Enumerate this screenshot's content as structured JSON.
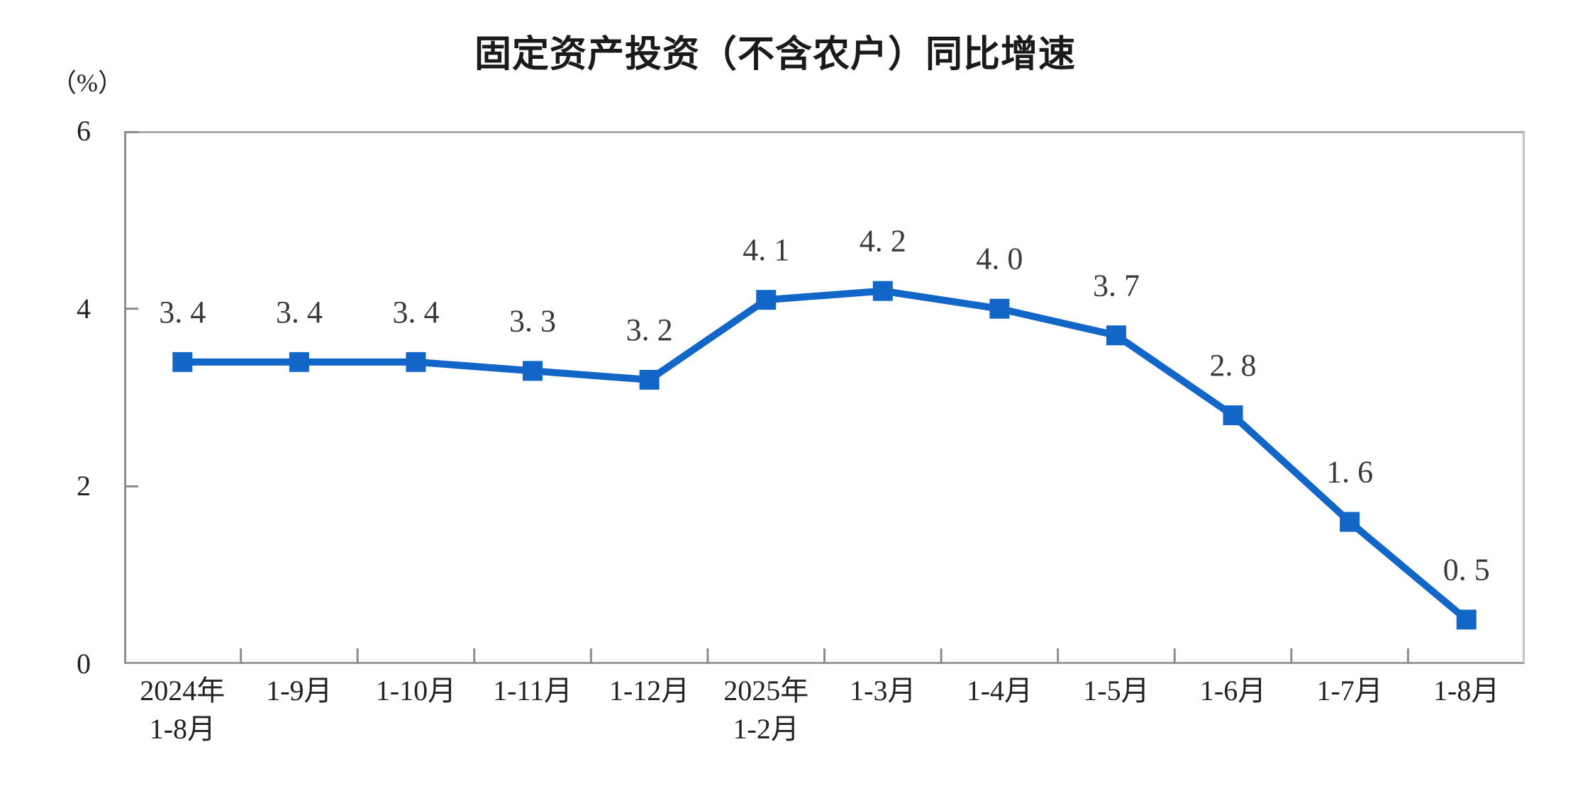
{
  "chart_data": {
    "type": "line",
    "title": "固定资产投资（不含农户）同比增速",
    "unit_label": "（%）",
    "categories": [
      [
        "2024年",
        "1-8月"
      ],
      [
        "1-9月"
      ],
      [
        "1-10月"
      ],
      [
        "1-11月"
      ],
      [
        "1-12月"
      ],
      [
        "2025年",
        "1-2月"
      ],
      [
        "1-3月"
      ],
      [
        "1-4月"
      ],
      [
        "1-5月"
      ],
      [
        "1-6月"
      ],
      [
        "1-7月"
      ],
      [
        "1-8月"
      ]
    ],
    "values": [
      3.4,
      3.4,
      3.4,
      3.3,
      3.2,
      4.1,
      4.2,
      4.0,
      3.7,
      2.8,
      1.6,
      0.5
    ],
    "data_labels": [
      "3.4",
      "3.4",
      "3.4",
      "3.3",
      "3.2",
      "4.1",
      "4.2",
      "4.0",
      "3.7",
      "2.8",
      "1.6",
      "0.5"
    ],
    "ylim": [
      0,
      6
    ],
    "yticks": [
      0,
      2,
      4,
      6
    ],
    "grid": false,
    "legend": "none",
    "marker": "square",
    "line_color": "#1266c8",
    "data_label_color": "#3a3a3a",
    "axis_tick_color": "#8c8c8c"
  }
}
